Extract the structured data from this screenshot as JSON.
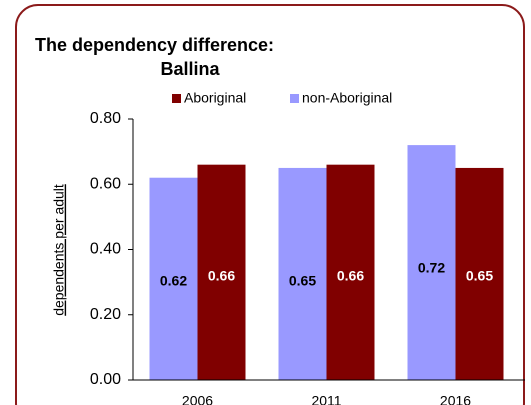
{
  "chart_data": {
    "type": "bar",
    "title": "The dependency difference:",
    "subtitle": "Ballina",
    "y_label": "dependents per adult",
    "categories": [
      "2006",
      "2011",
      "2016"
    ],
    "series": [
      {
        "name": "non-Aboriginal",
        "color": "#9999ff",
        "values": [
          0.62,
          0.65,
          0.72
        ]
      },
      {
        "name": "Aboriginal",
        "color": "#800000",
        "values": [
          0.66,
          0.66,
          0.65
        ]
      }
    ],
    "ylim": [
      0,
      0.8
    ],
    "yticks": [
      {
        "value": 0,
        "label": "0.00"
      },
      {
        "value": 0.2,
        "label": "0.20"
      },
      {
        "value": 0.4,
        "label": "0.40"
      },
      {
        "value": 0.6,
        "label": "0.60"
      },
      {
        "value": 0.8,
        "label": "0.80"
      }
    ]
  }
}
